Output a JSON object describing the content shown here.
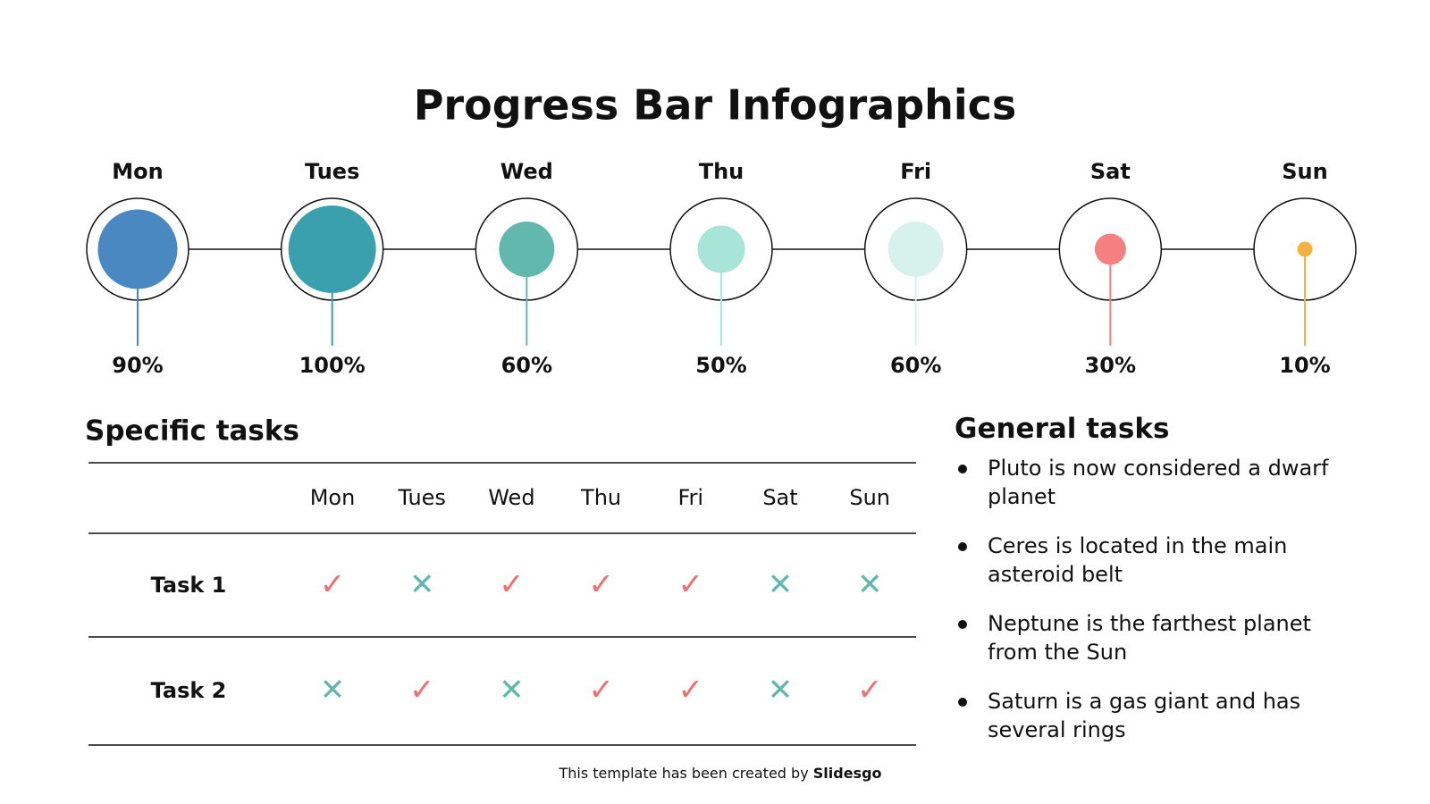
{
  "chart_data": {
    "type": "progress",
    "title": "Progress Bar Infographics",
    "categories": [
      "Mon",
      "Tues",
      "Wed",
      "Thu",
      "Fri",
      "Sat",
      "Sun"
    ],
    "values": [
      90,
      100,
      60,
      50,
      60,
      30,
      10
    ],
    "value_labels": [
      "90%",
      "100%",
      "60%",
      "50%",
      "60%",
      "30%",
      "10%"
    ],
    "colors": [
      "#4a88c2",
      "#3aa0ae",
      "#62b8ac",
      "#a8e4d8",
      "#d6f2ea",
      "#f48080",
      "#f4b040"
    ]
  },
  "specific_tasks": {
    "title": "Specific tasks",
    "columns": [
      "Mon",
      "Tues",
      "Wed",
      "Thu",
      "Fri",
      "Sat",
      "Sun"
    ],
    "rows": [
      {
        "label": "Task 1",
        "cells": [
          {
            "mark": "✓",
            "color": "#ef6f6f"
          },
          {
            "mark": "✕",
            "color": "#5fb8ad"
          },
          {
            "mark": "✓",
            "color": "#ef6f6f"
          },
          {
            "mark": "✓",
            "color": "#ef6f6f"
          },
          {
            "mark": "✓",
            "color": "#ef6f6f"
          },
          {
            "mark": "✕",
            "color": "#5fb8ad"
          },
          {
            "mark": "✕",
            "color": "#5fb8ad"
          }
        ]
      },
      {
        "label": "Task 2",
        "cells": [
          {
            "mark": "✕",
            "color": "#5fb8ad"
          },
          {
            "mark": "✓",
            "color": "#ef6f6f"
          },
          {
            "mark": "✕",
            "color": "#5fb8ad"
          },
          {
            "mark": "✓",
            "color": "#ef6f6f"
          },
          {
            "mark": "✓",
            "color": "#ef6f6f"
          },
          {
            "mark": "✕",
            "color": "#5fb8ad"
          },
          {
            "mark": "✓",
            "color": "#ef6f6f"
          }
        ]
      }
    ]
  },
  "general_tasks": {
    "title": "General tasks",
    "items": [
      "Pluto is now considered a dwarf planet",
      "Ceres is located in the main asteroid belt",
      "Neptune is the farthest planet from the Sun",
      "Saturn is a gas giant and has several rings"
    ]
  },
  "footer": {
    "text": "This template has been created by",
    "brand": "Slidesgo"
  }
}
